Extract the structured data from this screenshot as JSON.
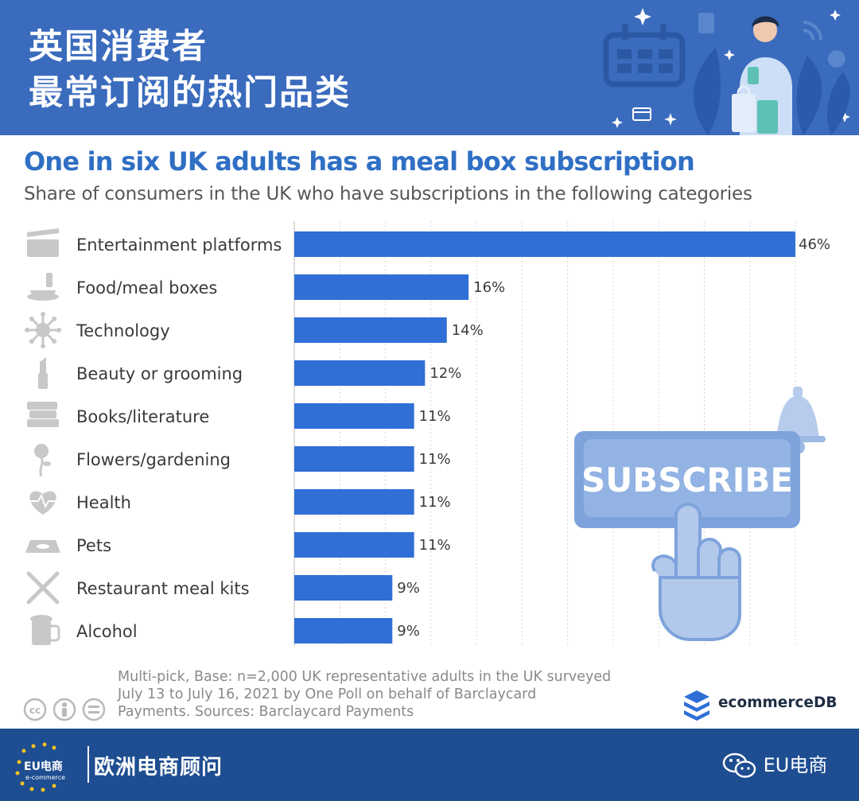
{
  "header": {
    "title_line1": "英国消费者",
    "title_line2": "最常订阅的热门品类"
  },
  "chart_data": {
    "type": "bar",
    "orientation": "horizontal",
    "title": "One in six UK adults has a meal box subscription",
    "subtitle": "Share of consumers in the UK who have subscriptions in the following categories",
    "categories": [
      "Entertainment platforms",
      "Food/meal boxes",
      "Technology",
      "Beauty or grooming",
      "Books/literature",
      "Flowers/gardening",
      "Health",
      "Pets",
      "Restaurant meal kits",
      "Alcohol"
    ],
    "values": [
      46,
      16,
      14,
      12,
      11,
      11,
      11,
      11,
      9,
      9
    ],
    "value_labels": [
      "46%",
      "16%",
      "14%",
      "12%",
      "11%",
      "11%",
      "11%",
      "11%",
      "9%",
      "9%"
    ],
    "icons": [
      "clapperboard-icon",
      "food-bowl-icon",
      "technology-icon",
      "lipstick-icon",
      "books-icon",
      "rose-icon",
      "heart-pulse-icon",
      "pet-bowl-icon",
      "knife-fork-icon",
      "beer-mug-icon"
    ],
    "xlim": [
      0,
      46
    ],
    "grid": true,
    "bar_color": "#2f6fd6",
    "gridline_color": "#d4d4d4"
  },
  "illustration": {
    "button_text": "SUBSCRIBE"
  },
  "footnote": {
    "line1": "Multi-pick, Base: n=2,000 UK representative adults in the UK surveyed",
    "line2": "July 13 to July 16, 2021 by One Poll on behalf of Barclaycard",
    "line3": "Payments. Sources: Barclaycard Payments"
  },
  "brand": {
    "name": "ecommerceDB"
  },
  "footer": {
    "logo_text": "EU电商",
    "logo_subtext": "e-commerce",
    "org_name": "欧洲电商顾问",
    "wechat_account": "EU电商"
  },
  "colors": {
    "header_bg": "#3a6bbd",
    "title_blue": "#2f6fc4",
    "footer_bg": "#1e4d91",
    "icon_gray": "#c8c8c8"
  }
}
